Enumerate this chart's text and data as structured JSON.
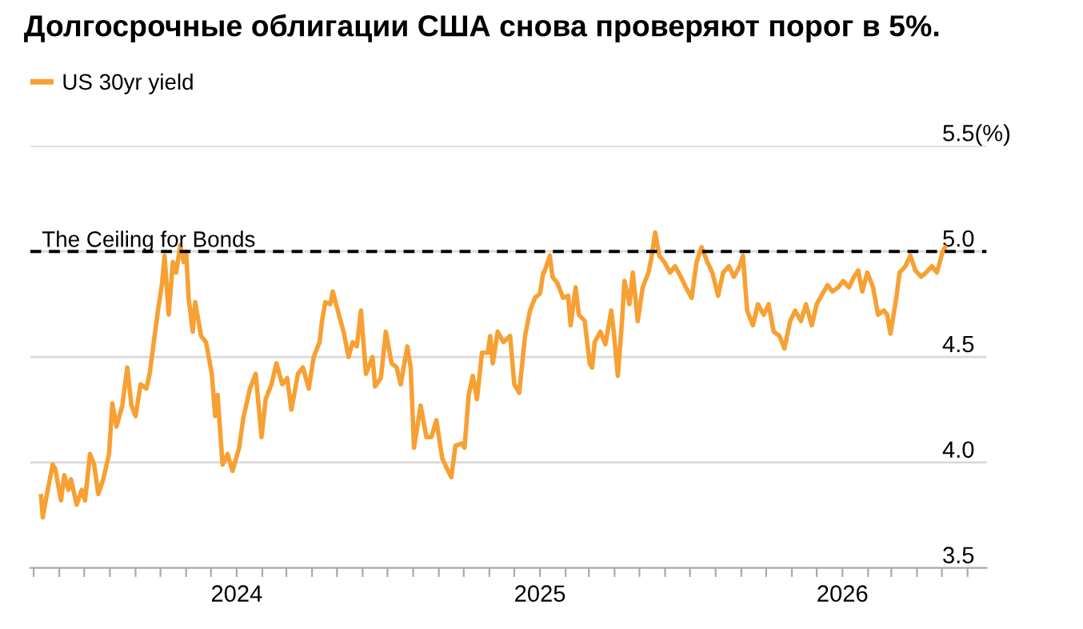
{
  "chart_data": {
    "type": "line",
    "title": "Долгосрочные облигации США снова проверяют порог в 5%.",
    "legend": "top left",
    "grid": "y",
    "xlim": [
      "2023-04-27",
      "2026-06-24"
    ],
    "xticks": [
      {
        "value": "2023-05-01",
        "label": null
      },
      {
        "value": "2023-06-01",
        "label": null
      },
      {
        "value": "2023-07-01",
        "label": null
      },
      {
        "value": "2023-08-01",
        "label": null
      },
      {
        "value": "2023-09-01",
        "label": null
      },
      {
        "value": "2023-10-01",
        "label": null
      },
      {
        "value": "2023-11-01",
        "label": null
      },
      {
        "value": "2023-12-01",
        "label": null
      },
      {
        "value": "2024-01-01",
        "label": "2024"
      },
      {
        "value": "2024-02-01",
        "label": null
      },
      {
        "value": "2024-03-01",
        "label": null
      },
      {
        "value": "2024-04-01",
        "label": null
      },
      {
        "value": "2024-05-01",
        "label": null
      },
      {
        "value": "2024-06-01",
        "label": null
      },
      {
        "value": "2024-07-01",
        "label": null
      },
      {
        "value": "2024-08-01",
        "label": null
      },
      {
        "value": "2024-09-01",
        "label": null
      },
      {
        "value": "2024-10-01",
        "label": null
      },
      {
        "value": "2024-11-01",
        "label": null
      },
      {
        "value": "2024-12-01",
        "label": null
      },
      {
        "value": "2025-01-01",
        "label": "2025"
      },
      {
        "value": "2025-02-01",
        "label": null
      },
      {
        "value": "2025-03-01",
        "label": null
      },
      {
        "value": "2025-04-01",
        "label": null
      },
      {
        "value": "2025-05-01",
        "label": null
      },
      {
        "value": "2025-06-01",
        "label": null
      },
      {
        "value": "2025-07-01",
        "label": null
      },
      {
        "value": "2025-08-01",
        "label": null
      },
      {
        "value": "2025-09-01",
        "label": null
      },
      {
        "value": "2025-10-01",
        "label": null
      },
      {
        "value": "2025-11-01",
        "label": null
      },
      {
        "value": "2025-12-01",
        "label": null
      },
      {
        "value": "2026-01-01",
        "label": "2026"
      },
      {
        "value": "2026-02-01",
        "label": null
      },
      {
        "value": "2026-03-01",
        "label": null
      },
      {
        "value": "2026-04-01",
        "label": null
      },
      {
        "value": "2026-05-01",
        "label": null
      },
      {
        "value": "2026-06-01",
        "label": null
      }
    ],
    "ylim": [
      3.5,
      5.5
    ],
    "yticks": [
      3.5,
      {
        "value": 4.0,
        "label": "4.0"
      },
      4.5,
      {
        "value": 5.0,
        "label": "5.0"
      },
      {
        "value": 5.5,
        "label": "5.5(%)"
      }
    ],
    "ref_lines": [
      {
        "axis": "y",
        "value": 5.0,
        "label": "The Ceiling for Bonds",
        "color": "#000000",
        "line_style": "dashed"
      }
    ],
    "x": [
      "2023-05-10",
      "2023-05-12",
      "2023-05-17",
      "2023-05-24",
      "2023-05-27",
      "2023-06-03",
      "2023-06-07",
      "2023-06-12",
      "2023-06-15",
      "2023-06-22",
      "2023-06-28",
      "2023-07-02",
      "2023-07-08",
      "2023-07-13",
      "2023-07-18",
      "2023-07-24",
      "2023-07-31",
      "2023-08-04",
      "2023-08-09",
      "2023-08-16",
      "2023-08-22",
      "2023-08-27",
      "2023-09-01",
      "2023-09-07",
      "2023-09-14",
      "2023-09-18",
      "2023-09-23",
      "2023-09-28",
      "2023-10-03",
      "2023-10-06",
      "2023-10-11",
      "2023-10-16",
      "2023-10-20",
      "2023-10-25",
      "2023-10-29",
      "2023-11-01",
      "2023-11-04",
      "2023-11-09",
      "2023-11-12",
      "2023-11-19",
      "2023-11-25",
      "2023-12-02",
      "2023-12-06",
      "2023-12-09",
      "2023-12-15",
      "2023-12-21",
      "2023-12-27",
      "2024-01-04",
      "2024-01-09",
      "2024-01-17",
      "2024-01-24",
      "2024-01-31",
      "2024-02-05",
      "2024-02-12",
      "2024-02-18",
      "2024-02-25",
      "2024-03-02",
      "2024-03-07",
      "2024-03-15",
      "2024-03-21",
      "2024-03-28",
      "2024-04-03",
      "2024-04-10",
      "2024-04-13",
      "2024-04-17",
      "2024-04-23",
      "2024-04-26",
      "2024-05-02",
      "2024-05-09",
      "2024-05-15",
      "2024-05-20",
      "2024-05-25",
      "2024-05-30",
      "2024-06-05",
      "2024-06-13",
      "2024-06-16",
      "2024-06-23",
      "2024-06-29",
      "2024-07-06",
      "2024-07-12",
      "2024-07-17",
      "2024-07-25",
      "2024-07-29",
      "2024-08-02",
      "2024-08-10",
      "2024-08-17",
      "2024-08-23",
      "2024-08-29",
      "2024-09-05",
      "2024-09-11",
      "2024-09-16",
      "2024-09-21",
      "2024-09-29",
      "2024-10-02",
      "2024-10-07",
      "2024-10-12",
      "2024-10-17",
      "2024-10-23",
      "2024-10-30",
      "2024-11-02",
      "2024-11-05",
      "2024-11-11",
      "2024-11-18",
      "2024-11-26",
      "2024-12-01",
      "2024-12-07",
      "2024-12-14",
      "2024-12-20",
      "2024-12-26",
      "2025-01-01",
      "2025-01-05",
      "2025-01-06",
      "2025-01-13",
      "2025-01-16",
      "2025-01-22",
      "2025-01-29",
      "2025-02-04",
      "2025-02-07",
      "2025-02-13",
      "2025-02-17",
      "2025-02-24",
      "2025-03-02",
      "2025-03-05",
      "2025-03-08",
      "2025-03-15",
      "2025-03-21",
      "2025-03-28",
      "2025-03-31",
      "2025-04-05",
      "2025-04-10",
      "2025-04-13",
      "2025-04-19",
      "2025-04-23",
      "2025-04-29",
      "2025-05-05",
      "2025-05-12",
      "2025-05-16",
      "2025-05-20",
      "2025-05-25",
      "2025-05-31",
      "2025-06-07",
      "2025-06-13",
      "2025-06-20",
      "2025-06-26",
      "2025-07-03",
      "2025-07-09",
      "2025-07-15",
      "2025-07-22",
      "2025-07-28",
      "2025-08-04",
      "2025-08-10",
      "2025-08-17",
      "2025-08-23",
      "2025-08-30",
      "2025-09-03",
      "2025-09-08",
      "2025-09-15",
      "2025-09-21",
      "2025-09-28",
      "2025-10-04",
      "2025-10-10",
      "2025-10-17",
      "2025-10-23",
      "2025-10-30",
      "2025-11-05",
      "2025-11-12",
      "2025-11-18",
      "2025-11-25",
      "2025-12-01",
      "2025-12-08",
      "2025-12-14",
      "2025-12-20",
      "2025-12-27",
      "2026-01-02",
      "2026-01-09",
      "2026-01-15",
      "2026-01-20",
      "2026-01-25",
      "2026-01-31",
      "2026-02-07",
      "2026-02-13",
      "2026-02-20",
      "2026-02-24",
      "2026-02-28",
      "2026-03-07",
      "2026-03-11",
      "2026-03-18",
      "2026-03-24",
      "2026-03-30",
      "2026-04-06",
      "2026-04-12",
      "2026-04-19",
      "2026-04-25",
      "2026-05-02",
      "2026-05-05"
    ],
    "series": [
      {
        "name": "US 30yr yield",
        "color": "#f7a033",
        "values": [
          3.84,
          3.74,
          3.85,
          3.99,
          3.97,
          3.82,
          3.94,
          3.87,
          3.92,
          3.8,
          3.87,
          3.82,
          4.04,
          3.99,
          3.85,
          3.92,
          4.04,
          4.28,
          4.17,
          4.27,
          4.45,
          4.27,
          4.22,
          4.37,
          4.35,
          4.42,
          4.57,
          4.72,
          4.85,
          4.98,
          4.7,
          4.95,
          4.9,
          5.03,
          4.95,
          5.0,
          4.78,
          4.62,
          4.76,
          4.6,
          4.57,
          4.42,
          4.22,
          4.32,
          3.99,
          4.04,
          3.96,
          4.07,
          4.21,
          4.35,
          4.42,
          4.12,
          4.3,
          4.37,
          4.47,
          4.37,
          4.4,
          4.25,
          4.42,
          4.45,
          4.35,
          4.5,
          4.57,
          4.67,
          4.76,
          4.75,
          4.81,
          4.72,
          4.62,
          4.5,
          4.57,
          4.55,
          4.72,
          4.42,
          4.5,
          4.36,
          4.4,
          4.62,
          4.47,
          4.45,
          4.37,
          4.55,
          4.45,
          4.07,
          4.27,
          4.12,
          4.12,
          4.2,
          4.02,
          3.97,
          3.93,
          4.08,
          4.09,
          4.07,
          4.32,
          4.41,
          4.3,
          4.52,
          4.52,
          4.6,
          4.47,
          4.62,
          4.57,
          4.6,
          4.37,
          4.33,
          4.6,
          4.72,
          4.78,
          4.8,
          4.9,
          4.9,
          4.98,
          4.88,
          4.85,
          4.78,
          4.79,
          4.65,
          4.83,
          4.7,
          4.67,
          4.47,
          4.45,
          4.57,
          4.62,
          4.56,
          4.72,
          4.62,
          4.41,
          4.67,
          4.86,
          4.75,
          4.9,
          4.67,
          4.83,
          4.9,
          4.98,
          5.09,
          4.98,
          4.95,
          4.9,
          4.93,
          4.88,
          4.83,
          4.78,
          4.95,
          5.02,
          4.95,
          4.9,
          4.79,
          4.9,
          4.93,
          4.88,
          4.93,
          4.98,
          4.72,
          4.65,
          4.75,
          4.7,
          4.75,
          4.62,
          4.6,
          4.54,
          4.67,
          4.72,
          4.67,
          4.75,
          4.65,
          4.75,
          4.8,
          4.84,
          4.81,
          4.83,
          4.86,
          4.83,
          4.88,
          4.91,
          4.81,
          4.9,
          4.83,
          4.7,
          4.72,
          4.7,
          4.61,
          4.78,
          4.9,
          4.93,
          4.98,
          4.91,
          4.88,
          4.9,
          4.93,
          4.9,
          5.0,
          5.02
        ]
      }
    ]
  }
}
